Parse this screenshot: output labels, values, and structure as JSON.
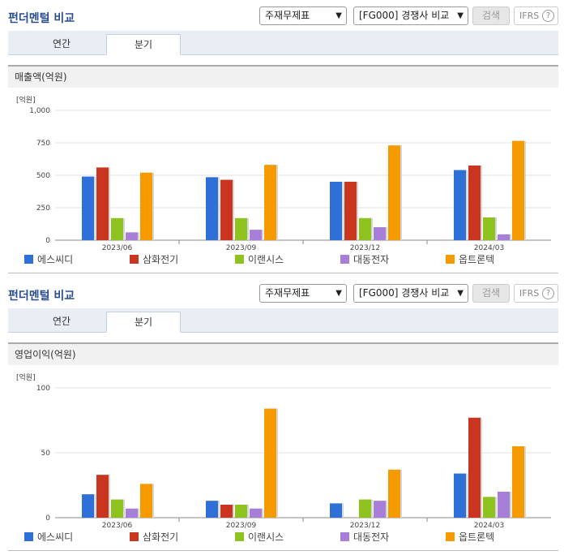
{
  "panels": [
    {
      "title": "펀더멘털 비교",
      "select_statement": "주재무제표",
      "select_competitor": "[FG000] 경쟁사 비교",
      "search_label": "검색",
      "ifrs_label": "IFRS",
      "help_label": "?",
      "tabs": [
        {
          "label": "연간"
        },
        {
          "label": "분기"
        }
      ],
      "chart_title": "매출액(억원)",
      "unit": "[억원]",
      "chart_data": {
        "type": "bar",
        "categories": [
          "2023/06",
          "2023/09",
          "2023/12",
          "2024/03"
        ],
        "ylim": [
          0,
          1000
        ],
        "yticks": [
          0,
          250,
          500,
          750,
          1000
        ],
        "ytick_labels": [
          "0",
          "250",
          "500",
          "750",
          "1,000"
        ],
        "grid": true,
        "legend_position": "bottom",
        "series": [
          {
            "name": "에스씨디",
            "color": "#2e6fd8",
            "values": [
              490,
              485,
              450,
              540
            ]
          },
          {
            "name": "삼화전기",
            "color": "#c9351f",
            "values": [
              560,
              465,
              450,
              575
            ]
          },
          {
            "name": "이랜시스",
            "color": "#8dc21f",
            "values": [
              170,
              170,
              170,
              175
            ]
          },
          {
            "name": "대동전자",
            "color": "#a77fd8",
            "values": [
              60,
              80,
              100,
              45
            ]
          },
          {
            "name": "옵트론텍",
            "color": "#f59b00",
            "values": [
              520,
              580,
              730,
              765
            ]
          }
        ]
      }
    },
    {
      "title": "펀더멘털 비교",
      "select_statement": "주재무제표",
      "select_competitor": "[FG000] 경쟁사 비교",
      "search_label": "검색",
      "ifrs_label": "IFRS",
      "help_label": "?",
      "tabs": [
        {
          "label": "연간"
        },
        {
          "label": "분기"
        }
      ],
      "chart_title": "영업이익(억원)",
      "unit": "[억원]",
      "chart_data": {
        "type": "bar",
        "categories": [
          "2023/06",
          "2023/09",
          "2023/12",
          "2024/03"
        ],
        "ylim": [
          0,
          100
        ],
        "yticks": [
          0,
          50,
          100
        ],
        "ytick_labels": [
          "0",
          "50",
          "100"
        ],
        "grid": true,
        "legend_position": "bottom",
        "series": [
          {
            "name": "에스씨디",
            "color": "#2e6fd8",
            "values": [
              18,
              13,
              11,
              34
            ]
          },
          {
            "name": "삼화전기",
            "color": "#c9351f",
            "values": [
              33,
              10,
              0,
              77
            ]
          },
          {
            "name": "이랜시스",
            "color": "#8dc21f",
            "values": [
              14,
              10,
              14,
              16
            ]
          },
          {
            "name": "대동전자",
            "color": "#a77fd8",
            "values": [
              7,
              7,
              13,
              20
            ]
          },
          {
            "name": "옵트론텍",
            "color": "#f59b00",
            "values": [
              26,
              84,
              37,
              55
            ]
          }
        ]
      }
    }
  ]
}
